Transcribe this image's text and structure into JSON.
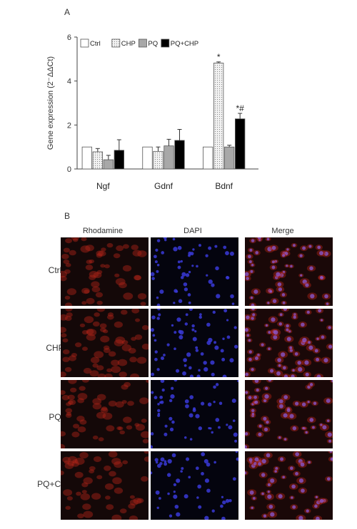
{
  "panel_a_label": "A",
  "panel_b_label": "B",
  "chart_data": {
    "type": "bar",
    "categories": [
      "Ngf",
      "Gdnf",
      "Bdnf"
    ],
    "ylabel": "Gene expression (2⁻ΔΔCt)",
    "ylim": [
      0,
      6
    ],
    "yticks": [
      0,
      2,
      4,
      6
    ],
    "legend_position": "top",
    "series": [
      {
        "name": "Ctrl",
        "values": [
          1.0,
          1.0,
          1.0
        ],
        "errors": [
          0,
          0,
          0
        ],
        "fill": "#ffffff",
        "pattern": "none"
      },
      {
        "name": "CHP",
        "values": [
          0.78,
          0.8,
          4.82
        ],
        "errors": [
          0.15,
          0.2,
          0.05
        ],
        "fill": "#e6e6e6",
        "pattern": "dots"
      },
      {
        "name": "PQ",
        "values": [
          0.42,
          1.05,
          1.0
        ],
        "errors": [
          0.2,
          0.3,
          0.08
        ],
        "fill": "#a8a8a8",
        "pattern": "none"
      },
      {
        "name": "PQ+CHP",
        "values": [
          0.85,
          1.3,
          2.28
        ],
        "errors": [
          0.48,
          0.5,
          0.25
        ],
        "fill": "#000000",
        "pattern": "none"
      }
    ],
    "annotations": [
      {
        "category": "Bdnf",
        "series": "CHP",
        "text": "*"
      },
      {
        "category": "Bdnf",
        "series": "PQ+CHP",
        "text": "*#"
      }
    ]
  },
  "image_grid": {
    "columns": [
      "Rhodamine",
      "DAPI",
      "Merge"
    ],
    "rows": [
      "Ctrl",
      "CHP",
      "PQ",
      "PQ+CHP"
    ],
    "channel_colors": {
      "Rhodamine": "#b02418",
      "DAPI": "#3a3ad8",
      "Merge": "#c0306a"
    },
    "background": "#140808"
  }
}
